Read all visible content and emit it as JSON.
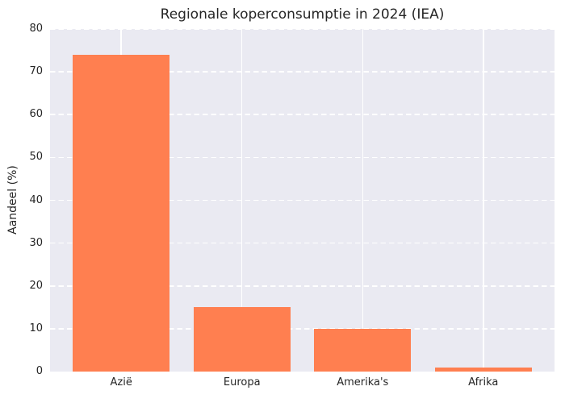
{
  "chart_data": {
    "type": "bar",
    "title": "Regionale koperconsumptie in 2024 (IEA)",
    "categories": [
      "Azië",
      "Europa",
      "Amerika's",
      "Afrika"
    ],
    "values": [
      74,
      15,
      10,
      1
    ],
    "xlabel": "",
    "ylabel": "Aandeel (%)",
    "ylim": [
      0,
      80
    ],
    "yticks": [
      0,
      10,
      20,
      30,
      40,
      50,
      60,
      70,
      80
    ],
    "grid": "on",
    "grid_style": {
      "horizontal": "dashed",
      "vertical": "solid"
    },
    "legend_position": "none",
    "colors": {
      "bar": "#FF7F50",
      "plot_background": "#EAEAF2",
      "figure_background": "#FFFFFF",
      "gridline": "#FFFFFF",
      "text": "#262626"
    }
  }
}
